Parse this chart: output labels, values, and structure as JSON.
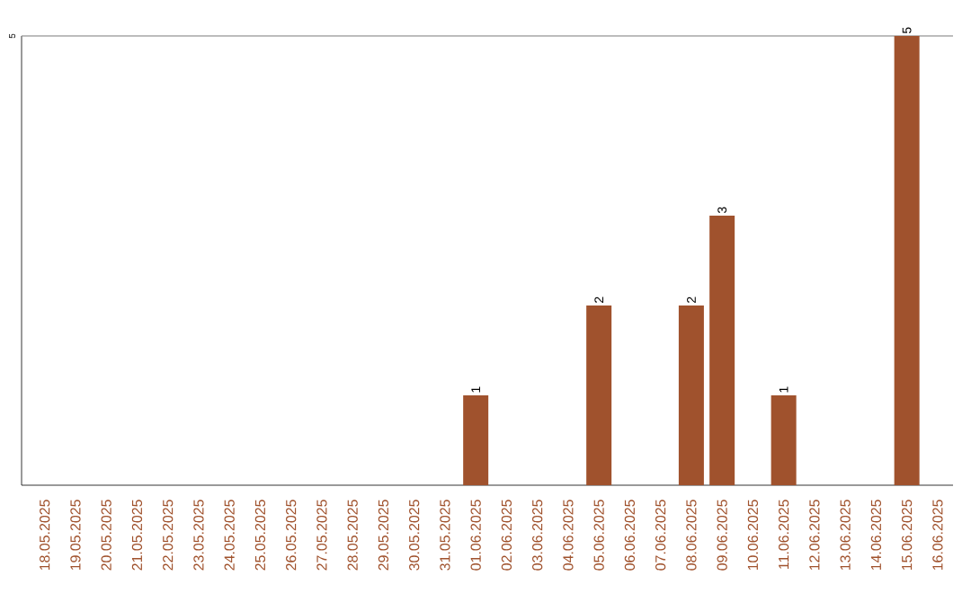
{
  "chart_data": {
    "type": "bar",
    "categories": [
      "18.05.2025",
      "19.05.2025",
      "20.05.2025",
      "21.05.2025",
      "22.05.2025",
      "23.05.2025",
      "24.05.2025",
      "25.05.2025",
      "26.05.2025",
      "27.05.2025",
      "28.05.2025",
      "29.05.2025",
      "30.05.2025",
      "31.05.2025",
      "01.06.2025",
      "02.06.2025",
      "03.06.2025",
      "04.06.2025",
      "05.06.2025",
      "06.06.2025",
      "07.06.2025",
      "08.06.2025",
      "09.06.2025",
      "10.06.2025",
      "11.06.2025",
      "12.06.2025",
      "13.06.2025",
      "14.06.2025",
      "15.06.2025",
      "16.06.2025"
    ],
    "values": [
      null,
      null,
      null,
      null,
      null,
      null,
      null,
      null,
      null,
      null,
      null,
      null,
      null,
      null,
      1,
      null,
      null,
      null,
      2,
      null,
      null,
      2,
      3,
      null,
      1,
      null,
      null,
      null,
      5,
      null
    ],
    "color": "#a0522d",
    "ylim": [
      0,
      5
    ],
    "yticks": [
      5
    ],
    "grid": "y",
    "data_labels": true
  }
}
